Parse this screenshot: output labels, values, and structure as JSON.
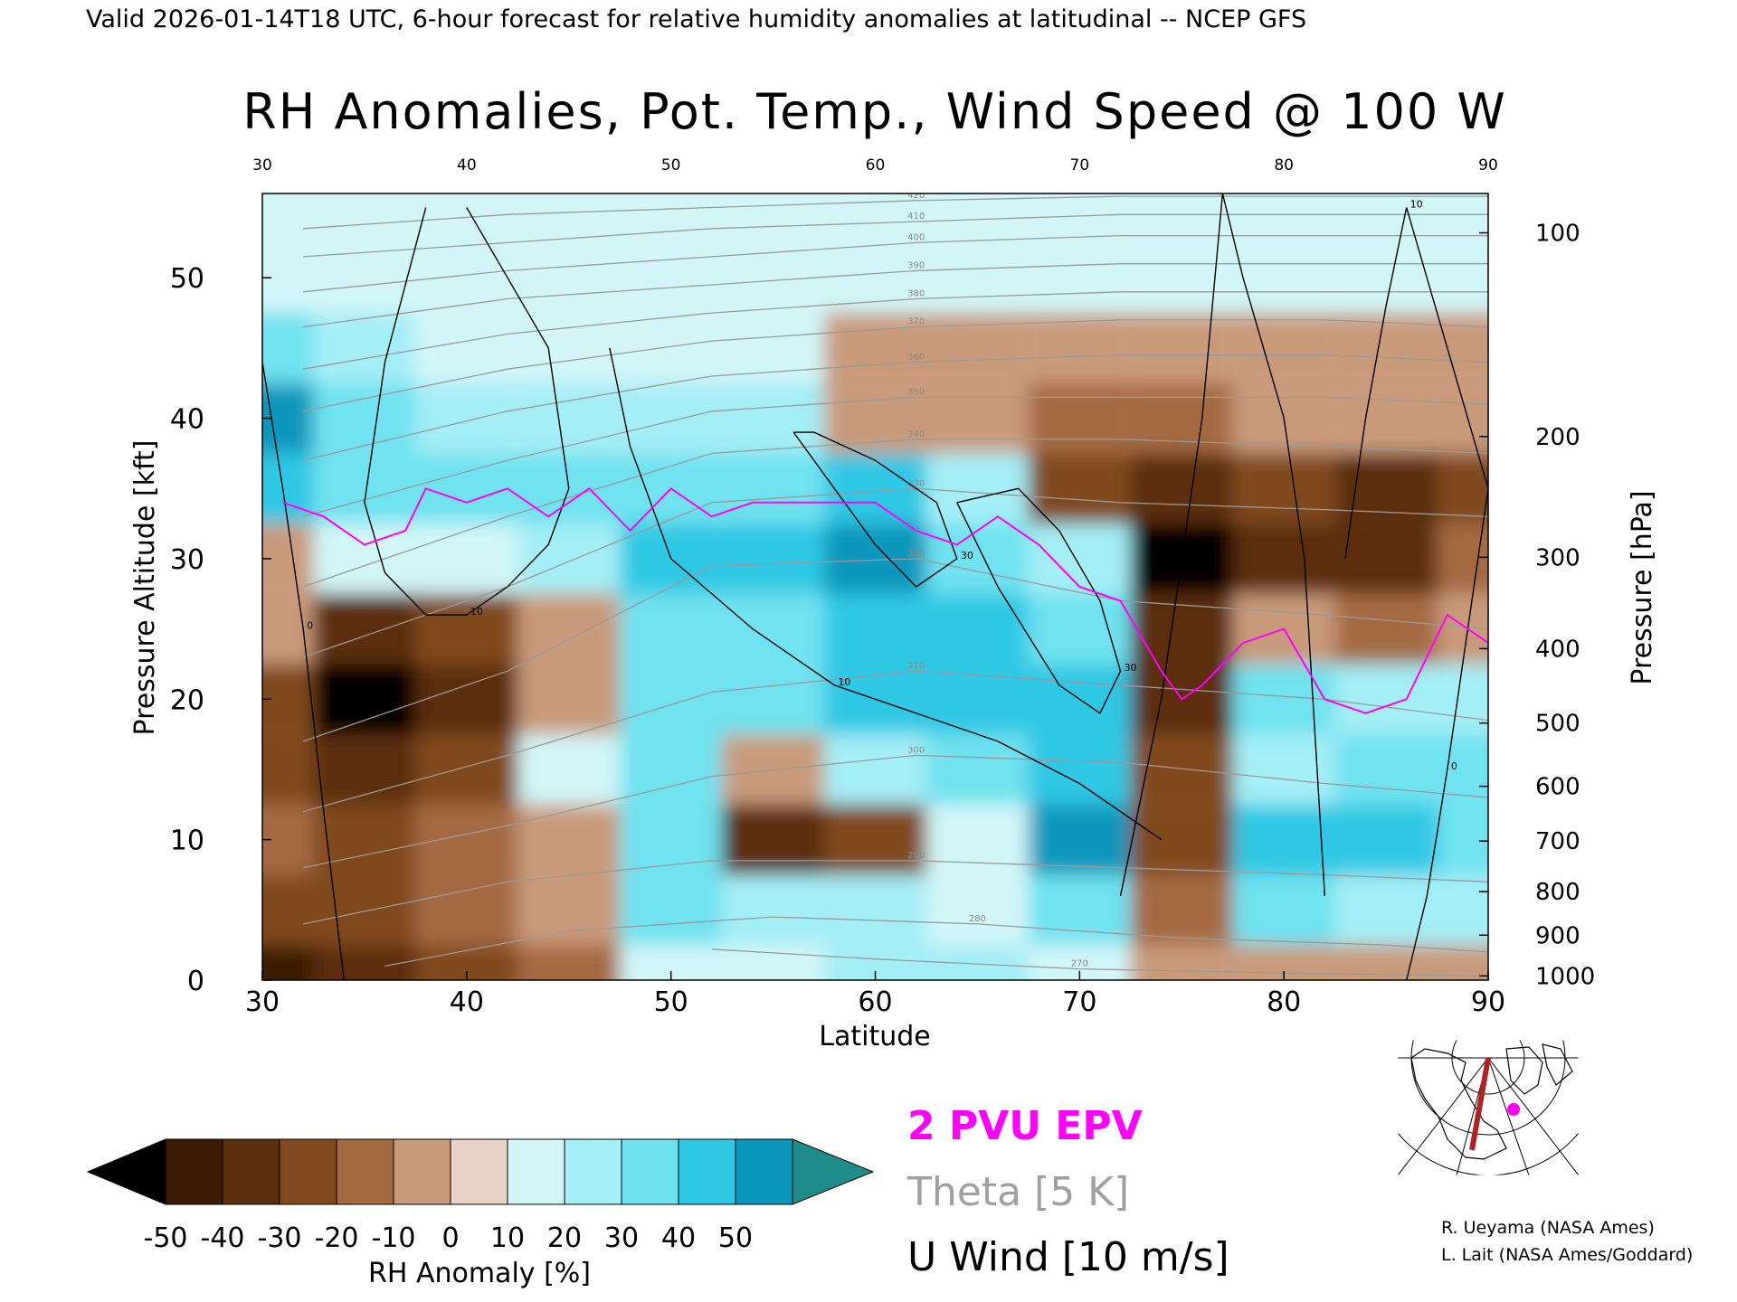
{
  "header": {
    "valid_line": "Valid 2026-01-14T18 UTC, 6-hour forecast for relative humidity anomalies at latitudinal -- NCEP GFS",
    "title": "RH Anomalies, Pot. Temp., Wind Speed @ 100 W"
  },
  "chart_data": {
    "type": "heatmap",
    "title": "RH Anomalies, Pot. Temp., Wind Speed @ 100 W",
    "xlabel": "Latitude",
    "ylabel": "Pressure Altitude [kft]",
    "y2label": "Pressure [hPa]",
    "xlim": [
      30,
      90
    ],
    "ylim": [
      0,
      56
    ],
    "x_ticks": [
      30,
      40,
      50,
      60,
      70,
      80,
      90
    ],
    "y_ticks": [
      0,
      10,
      20,
      30,
      40,
      50
    ],
    "pressure_ticks": [
      {
        "label": "100",
        "kft": 53.2
      },
      {
        "label": "200",
        "kft": 38.7
      },
      {
        "label": "300",
        "kft": 30.1
      },
      {
        "label": "400",
        "kft": 23.6
      },
      {
        "label": "500",
        "kft": 18.3
      },
      {
        "label": "600",
        "kft": 13.8
      },
      {
        "label": "700",
        "kft": 9.9
      },
      {
        "label": "800",
        "kft": 6.3
      },
      {
        "label": "900",
        "kft": 3.2
      },
      {
        "label": "1000",
        "kft": 0.3
      }
    ],
    "colorbar": {
      "label": "RH Anomaly [%]",
      "ticks": [
        "-50",
        "-40",
        "-30",
        "-20",
        "-10",
        "0",
        "10",
        "20",
        "30",
        "40",
        "50"
      ],
      "colors": [
        "#3a1a05",
        "#5c2f0e",
        "#80491f",
        "#a56a42",
        "#c99a7a",
        "#e9d3c6",
        "#d2f6f8",
        "#a4eef5",
        "#6fe2f0",
        "#2fc8e4",
        "#0b97bc"
      ],
      "under_color": "#000000",
      "over_color": "#1e8c88"
    },
    "rh_anomaly_grid": {
      "lat": [
        30,
        35,
        40,
        45,
        50,
        55,
        60,
        65,
        70,
        75,
        80,
        85,
        90
      ],
      "kft": [
        0,
        5,
        10,
        15,
        20,
        25,
        30,
        35,
        40,
        45,
        50,
        55
      ],
      "values": [
        [
          -45,
          -40,
          -30,
          -15,
          0,
          5,
          10,
          10,
          5,
          -10,
          -5,
          -10,
          -5
        ],
        [
          -30,
          -30,
          -20,
          -10,
          20,
          10,
          15,
          5,
          20,
          -20,
          20,
          10,
          10
        ],
        [
          -20,
          -25,
          -20,
          -10,
          25,
          -35,
          -30,
          5,
          45,
          -30,
          30,
          30,
          25
        ],
        [
          -30,
          -40,
          -30,
          0,
          20,
          -10,
          15,
          25,
          35,
          -25,
          15,
          25,
          20
        ],
        [
          -30,
          -55,
          -40,
          -10,
          20,
          25,
          30,
          30,
          30,
          -40,
          25,
          15,
          10
        ],
        [
          -10,
          -35,
          -30,
          -10,
          25,
          25,
          30,
          30,
          25,
          -40,
          -10,
          -20,
          -10
        ],
        [
          -5,
          0,
          5,
          10,
          30,
          30,
          40,
          25,
          15,
          -55,
          -40,
          -40,
          -20
        ],
        [
          30,
          20,
          20,
          20,
          20,
          25,
          30,
          10,
          -30,
          -40,
          -30,
          -35,
          -30
        ],
        [
          40,
          20,
          15,
          15,
          10,
          10,
          -5,
          -10,
          -15,
          -15,
          -10,
          -10,
          -10
        ],
        [
          20,
          10,
          5,
          5,
          5,
          5,
          -3,
          -5,
          -5,
          -5,
          -5,
          -5,
          -5
        ],
        [
          5,
          5,
          3,
          3,
          3,
          2,
          0,
          0,
          0,
          0,
          0,
          0,
          0
        ],
        [
          3,
          2,
          2,
          2,
          0,
          0,
          0,
          0,
          0,
          0,
          0,
          0,
          0
        ]
      ]
    },
    "theta_contours": {
      "interval_K": 5,
      "series": [
        {
          "label": "270",
          "lat": [
            52,
            60,
            70,
            80,
            90
          ],
          "kft": [
            2.2,
            1.5,
            0.8,
            0.5,
            0.3
          ]
        },
        {
          "label": "280",
          "lat": [
            36,
            45,
            55,
            65,
            75,
            85,
            90
          ],
          "kft": [
            1.0,
            3.5,
            4.5,
            4.0,
            3.0,
            2.5,
            2.0
          ]
        },
        {
          "label": "290",
          "lat": [
            32,
            42,
            52,
            62,
            72,
            82,
            90
          ],
          "kft": [
            4.0,
            7.0,
            8.5,
            8.5,
            8.0,
            7.5,
            7.0
          ]
        },
        {
          "label": "300",
          "lat": [
            32,
            42,
            52,
            62,
            72,
            82,
            90
          ],
          "kft": [
            8.0,
            11.0,
            14.5,
            16.0,
            15.5,
            14.0,
            13.0
          ]
        },
        {
          "label": "310",
          "lat": [
            32,
            42,
            52,
            62,
            72,
            82,
            90
          ],
          "kft": [
            12.0,
            16.0,
            20.5,
            22.0,
            21.0,
            20.0,
            18.5
          ]
        },
        {
          "label": "320",
          "lat": [
            32,
            42,
            52,
            62,
            72,
            82,
            90
          ],
          "kft": [
            17.0,
            22.0,
            29.5,
            30.0,
            27.0,
            26.0,
            25.0
          ]
        },
        {
          "label": "330",
          "lat": [
            32,
            42,
            52,
            62,
            72,
            82,
            90
          ],
          "kft": [
            23.0,
            28.0,
            34.0,
            35.0,
            34.0,
            33.5,
            33.0
          ]
        },
        {
          "label": "340",
          "lat": [
            32,
            42,
            52,
            62,
            72,
            82,
            90
          ],
          "kft": [
            28.0,
            33.0,
            37.5,
            38.5,
            38.5,
            38.0,
            37.5
          ]
        },
        {
          "label": "350",
          "lat": [
            32,
            42,
            52,
            62,
            72,
            82,
            90
          ],
          "kft": [
            33.0,
            37.0,
            40.5,
            41.5,
            41.5,
            41.5,
            41.0
          ]
        },
        {
          "label": "360",
          "lat": [
            32,
            42,
            52,
            62,
            72,
            82,
            90
          ],
          "kft": [
            37.0,
            40.5,
            43.0,
            44.0,
            44.5,
            44.5,
            44.0
          ]
        },
        {
          "label": "370",
          "lat": [
            32,
            42,
            52,
            62,
            72,
            82,
            90
          ],
          "kft": [
            40.5,
            43.5,
            45.5,
            46.5,
            47.0,
            47.0,
            46.5
          ]
        },
        {
          "label": "380",
          "lat": [
            32,
            42,
            52,
            62,
            72,
            82,
            90
          ],
          "kft": [
            43.5,
            46.0,
            47.5,
            48.5,
            49.0,
            49.0,
            49.0
          ]
        },
        {
          "label": "390",
          "lat": [
            32,
            42,
            52,
            62,
            72,
            82,
            90
          ],
          "kft": [
            46.5,
            48.5,
            49.5,
            50.5,
            51.0,
            51.0,
            51.0
          ]
        },
        {
          "label": "400",
          "lat": [
            32,
            42,
            52,
            62,
            72,
            82,
            90
          ],
          "kft": [
            49.0,
            50.5,
            51.5,
            52.5,
            53.0,
            53.0,
            53.0
          ]
        },
        {
          "label": "410",
          "lat": [
            32,
            42,
            52,
            62,
            72,
            82,
            90
          ],
          "kft": [
            51.5,
            52.5,
            53.5,
            54.0,
            54.5,
            54.5,
            54.5
          ]
        },
        {
          "label": "420",
          "lat": [
            32,
            42,
            52,
            62,
            72,
            82,
            90
          ],
          "kft": [
            53.5,
            54.5,
            55.0,
            55.5,
            55.8,
            55.8,
            55.8
          ]
        }
      ]
    },
    "epv_2pvu_line": {
      "lat": [
        31,
        33,
        35,
        37,
        38,
        40,
        42,
        44,
        46,
        48,
        50,
        52,
        54,
        56,
        58,
        60,
        62,
        64,
        66,
        68,
        70,
        72,
        74,
        75,
        76,
        78,
        80,
        82,
        84,
        86,
        88,
        90
      ],
      "kft": [
        34,
        33,
        31,
        32,
        35,
        34,
        35,
        33,
        35,
        32,
        35,
        33,
        34,
        34,
        34,
        34,
        32,
        31,
        33,
        31,
        28,
        27,
        22,
        20,
        21,
        24,
        25,
        20,
        19,
        20,
        26,
        24
      ]
    },
    "u_wind_contours": {
      "interval_ms": 10,
      "series": [
        {
          "label": "10",
          "lat": [
            40,
            42,
            44,
            45,
            44,
            42,
            40,
            38,
            36,
            35,
            36,
            38
          ],
          "kft": [
            55,
            50,
            45,
            35,
            31,
            28,
            26,
            26,
            29,
            34,
            44,
            55
          ]
        },
        {
          "label": "10",
          "lat": [
            47,
            48,
            50,
            54,
            58,
            62,
            66,
            70,
            74
          ],
          "kft": [
            45,
            38,
            30,
            25,
            21,
            19,
            17,
            14,
            10
          ]
        },
        {
          "label": "30",
          "lat": [
            56,
            58,
            60,
            62,
            64,
            63,
            60,
            57,
            56
          ],
          "kft": [
            39,
            35,
            31,
            28,
            30,
            34,
            37,
            39,
            39
          ]
        },
        {
          "label": "30",
          "lat": [
            64,
            67,
            69,
            71,
            72,
            71,
            69,
            66,
            64
          ],
          "kft": [
            34,
            35,
            32,
            27,
            22,
            19,
            21,
            28,
            34
          ]
        },
        {
          "label": "10",
          "lat": [
            72,
            74,
            75,
            76,
            77,
            78,
            80,
            81,
            82
          ],
          "kft": [
            6,
            20,
            30,
            40,
            56,
            50,
            40,
            30,
            6
          ]
        },
        {
          "label": "10",
          "lat": [
            83,
            84,
            85,
            86,
            88,
            90
          ],
          "kft": [
            30,
            40,
            48,
            55,
            45,
            35
          ]
        },
        {
          "label": "0",
          "lat": [
            30,
            31,
            32,
            33,
            34
          ],
          "kft": [
            44,
            35,
            25,
            12,
            0
          ]
        },
        {
          "label": "0",
          "lat": [
            86,
            87,
            88,
            89,
            90
          ],
          "kft": [
            0,
            6,
            15,
            25,
            35
          ]
        }
      ]
    },
    "legend_entries": [
      {
        "label": "2 PVU EPV",
        "color": "#ff00ff"
      },
      {
        "label": "Theta [5 K]",
        "color": "#a0a0a0"
      },
      {
        "label": "U Wind [10 m/s]",
        "color": "#000000"
      }
    ]
  },
  "credits": {
    "line1": "R. Ueyama (NASA Ames)",
    "line2": "L. Lait (NASA Ames/Goddard)"
  },
  "inset_map": {
    "marker_color": "#ff00ff",
    "section_color": "#b22222"
  }
}
